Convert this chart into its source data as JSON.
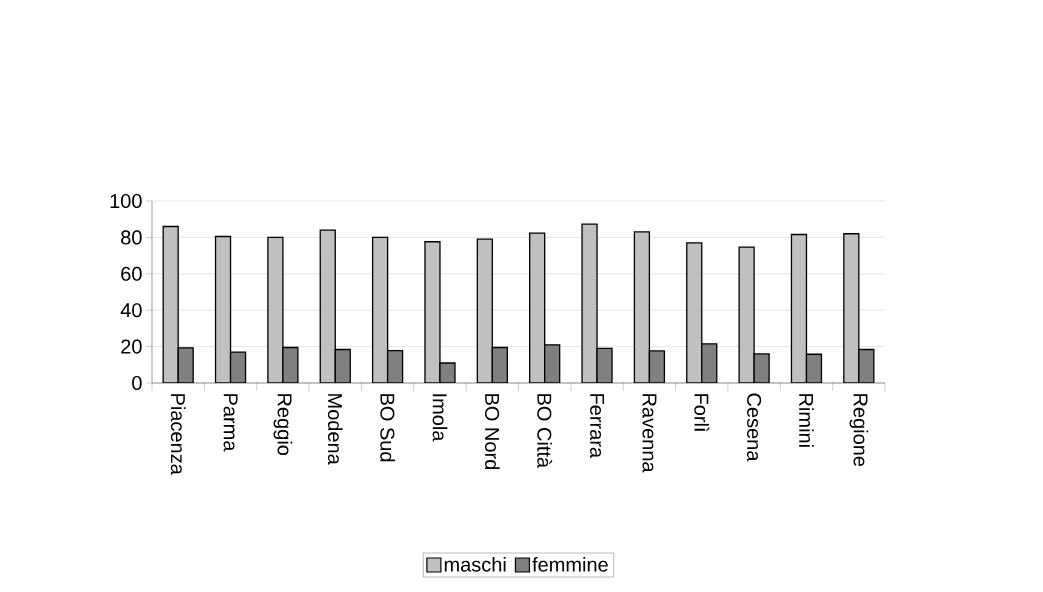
{
  "chart_data": {
    "type": "bar",
    "categories": [
      "Piacenza",
      "Parma",
      "Reggio",
      "Modena",
      "BO Sud",
      "Imola",
      "BO Nord",
      "BO Città",
      "Ferrara",
      "Ravenna",
      "Forlì",
      "Cesena",
      "Rimini",
      "Regione"
    ],
    "series": [
      {
        "name": "maschi",
        "color": "#c0c0c0",
        "values": [
          86,
          80.5,
          80,
          84,
          80,
          77.6,
          79,
          82.4,
          87.3,
          83,
          77,
          74.7,
          81.6,
          82
        ]
      },
      {
        "name": "femmine",
        "color": "#808080",
        "values": [
          19.3,
          17,
          19.5,
          18.4,
          17.8,
          11,
          19.5,
          21,
          19,
          17.6,
          21.5,
          16,
          15.8,
          18.4
        ]
      }
    ],
    "ylim": [
      0,
      100
    ],
    "yticks": [
      0,
      20,
      40,
      60,
      80,
      100
    ],
    "grid": "y",
    "legend": "bottom"
  }
}
